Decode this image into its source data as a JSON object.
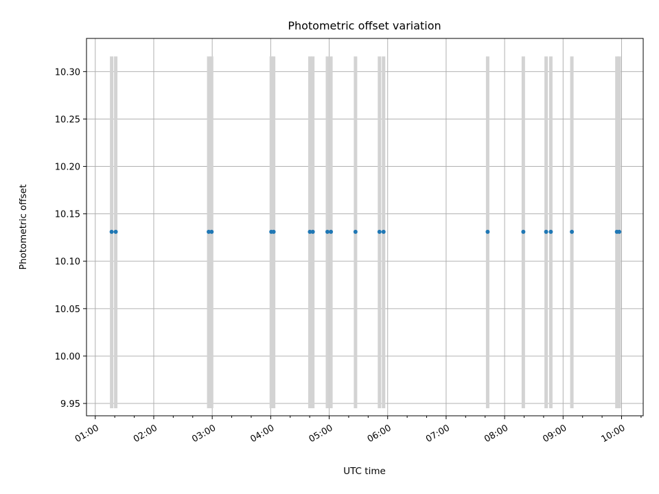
{
  "chart_data": {
    "type": "scatter",
    "title": "Photometric offset variation",
    "xlabel": "UTC time",
    "ylabel": "Photometric offset",
    "x_tick_labels": [
      "01:00",
      "02:00",
      "03:00",
      "04:00",
      "05:00",
      "06:00",
      "07:00",
      "08:00",
      "09:00",
      "10:00"
    ],
    "y_tick_labels": [
      "9.95",
      "10.00",
      "10.05",
      "10.10",
      "10.15",
      "10.20",
      "10.25",
      "10.30"
    ],
    "y_ticks": [
      9.95,
      10.0,
      10.05,
      10.1,
      10.15,
      10.2,
      10.25,
      10.3
    ],
    "x_unit": "hours UTC",
    "xlim": [
      0.85,
      10.37
    ],
    "ylim": [
      9.937,
      10.335
    ],
    "grid": true,
    "colors": {
      "points": "#1f77b4",
      "errorbars": "#d3d3d3",
      "grid": "#b0b0b0"
    },
    "errorbar_range": [
      9.945,
      10.316
    ],
    "points": [
      {
        "x": 1.28,
        "y": 10.131
      },
      {
        "x": 1.35,
        "y": 10.131
      },
      {
        "x": 2.94,
        "y": 10.131
      },
      {
        "x": 2.99,
        "y": 10.131
      },
      {
        "x": 4.01,
        "y": 10.131
      },
      {
        "x": 4.05,
        "y": 10.131
      },
      {
        "x": 4.67,
        "y": 10.131
      },
      {
        "x": 4.72,
        "y": 10.131
      },
      {
        "x": 4.97,
        "y": 10.131
      },
      {
        "x": 5.03,
        "y": 10.131
      },
      {
        "x": 5.45,
        "y": 10.131
      },
      {
        "x": 5.86,
        "y": 10.131
      },
      {
        "x": 5.93,
        "y": 10.131
      },
      {
        "x": 7.71,
        "y": 10.131
      },
      {
        "x": 8.32,
        "y": 10.131
      },
      {
        "x": 8.71,
        "y": 10.131
      },
      {
        "x": 8.79,
        "y": 10.131
      },
      {
        "x": 9.15,
        "y": 10.131
      },
      {
        "x": 9.92,
        "y": 10.131
      },
      {
        "x": 9.96,
        "y": 10.131
      }
    ]
  }
}
